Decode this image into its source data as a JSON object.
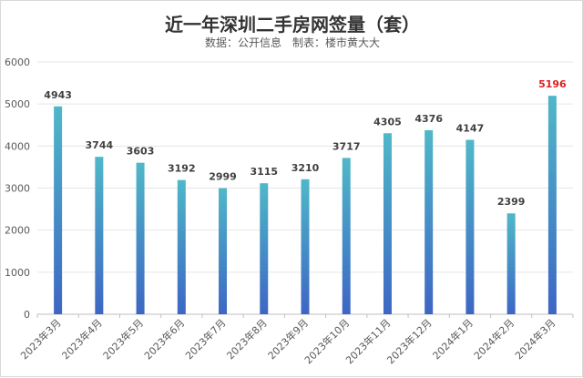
{
  "chart_data": {
    "type": "bar",
    "title": "近一年深圳二手房网签量（套）",
    "subtitle": "数据：公开信息　制表：楼市黄大大",
    "categories": [
      "2023年3月",
      "2023年4月",
      "2023年5月",
      "2023年6月",
      "2023年7月",
      "2023年8月",
      "2023年9月",
      "2023年10月",
      "2023年11月",
      "2023年12月",
      "2024年1月",
      "2024年2月",
      "2024年3月"
    ],
    "values": [
      4943,
      3744,
      3603,
      3192,
      2999,
      3115,
      3210,
      3717,
      4305,
      4376,
      4147,
      2399,
      5196
    ],
    "ylim": [
      0,
      6000
    ],
    "yticks": [
      0,
      1000,
      2000,
      3000,
      4000,
      5000,
      6000
    ],
    "xlabel": "",
    "ylabel": "",
    "grid": true,
    "colors": {
      "bar_top": "#4fb8c8",
      "bar_bottom": "#3d66c4",
      "label": "#404040",
      "highlight_label": "#e02020",
      "grid": "#e6e6e6",
      "axis_text": "#595959"
    },
    "highlight_index": 12
  }
}
